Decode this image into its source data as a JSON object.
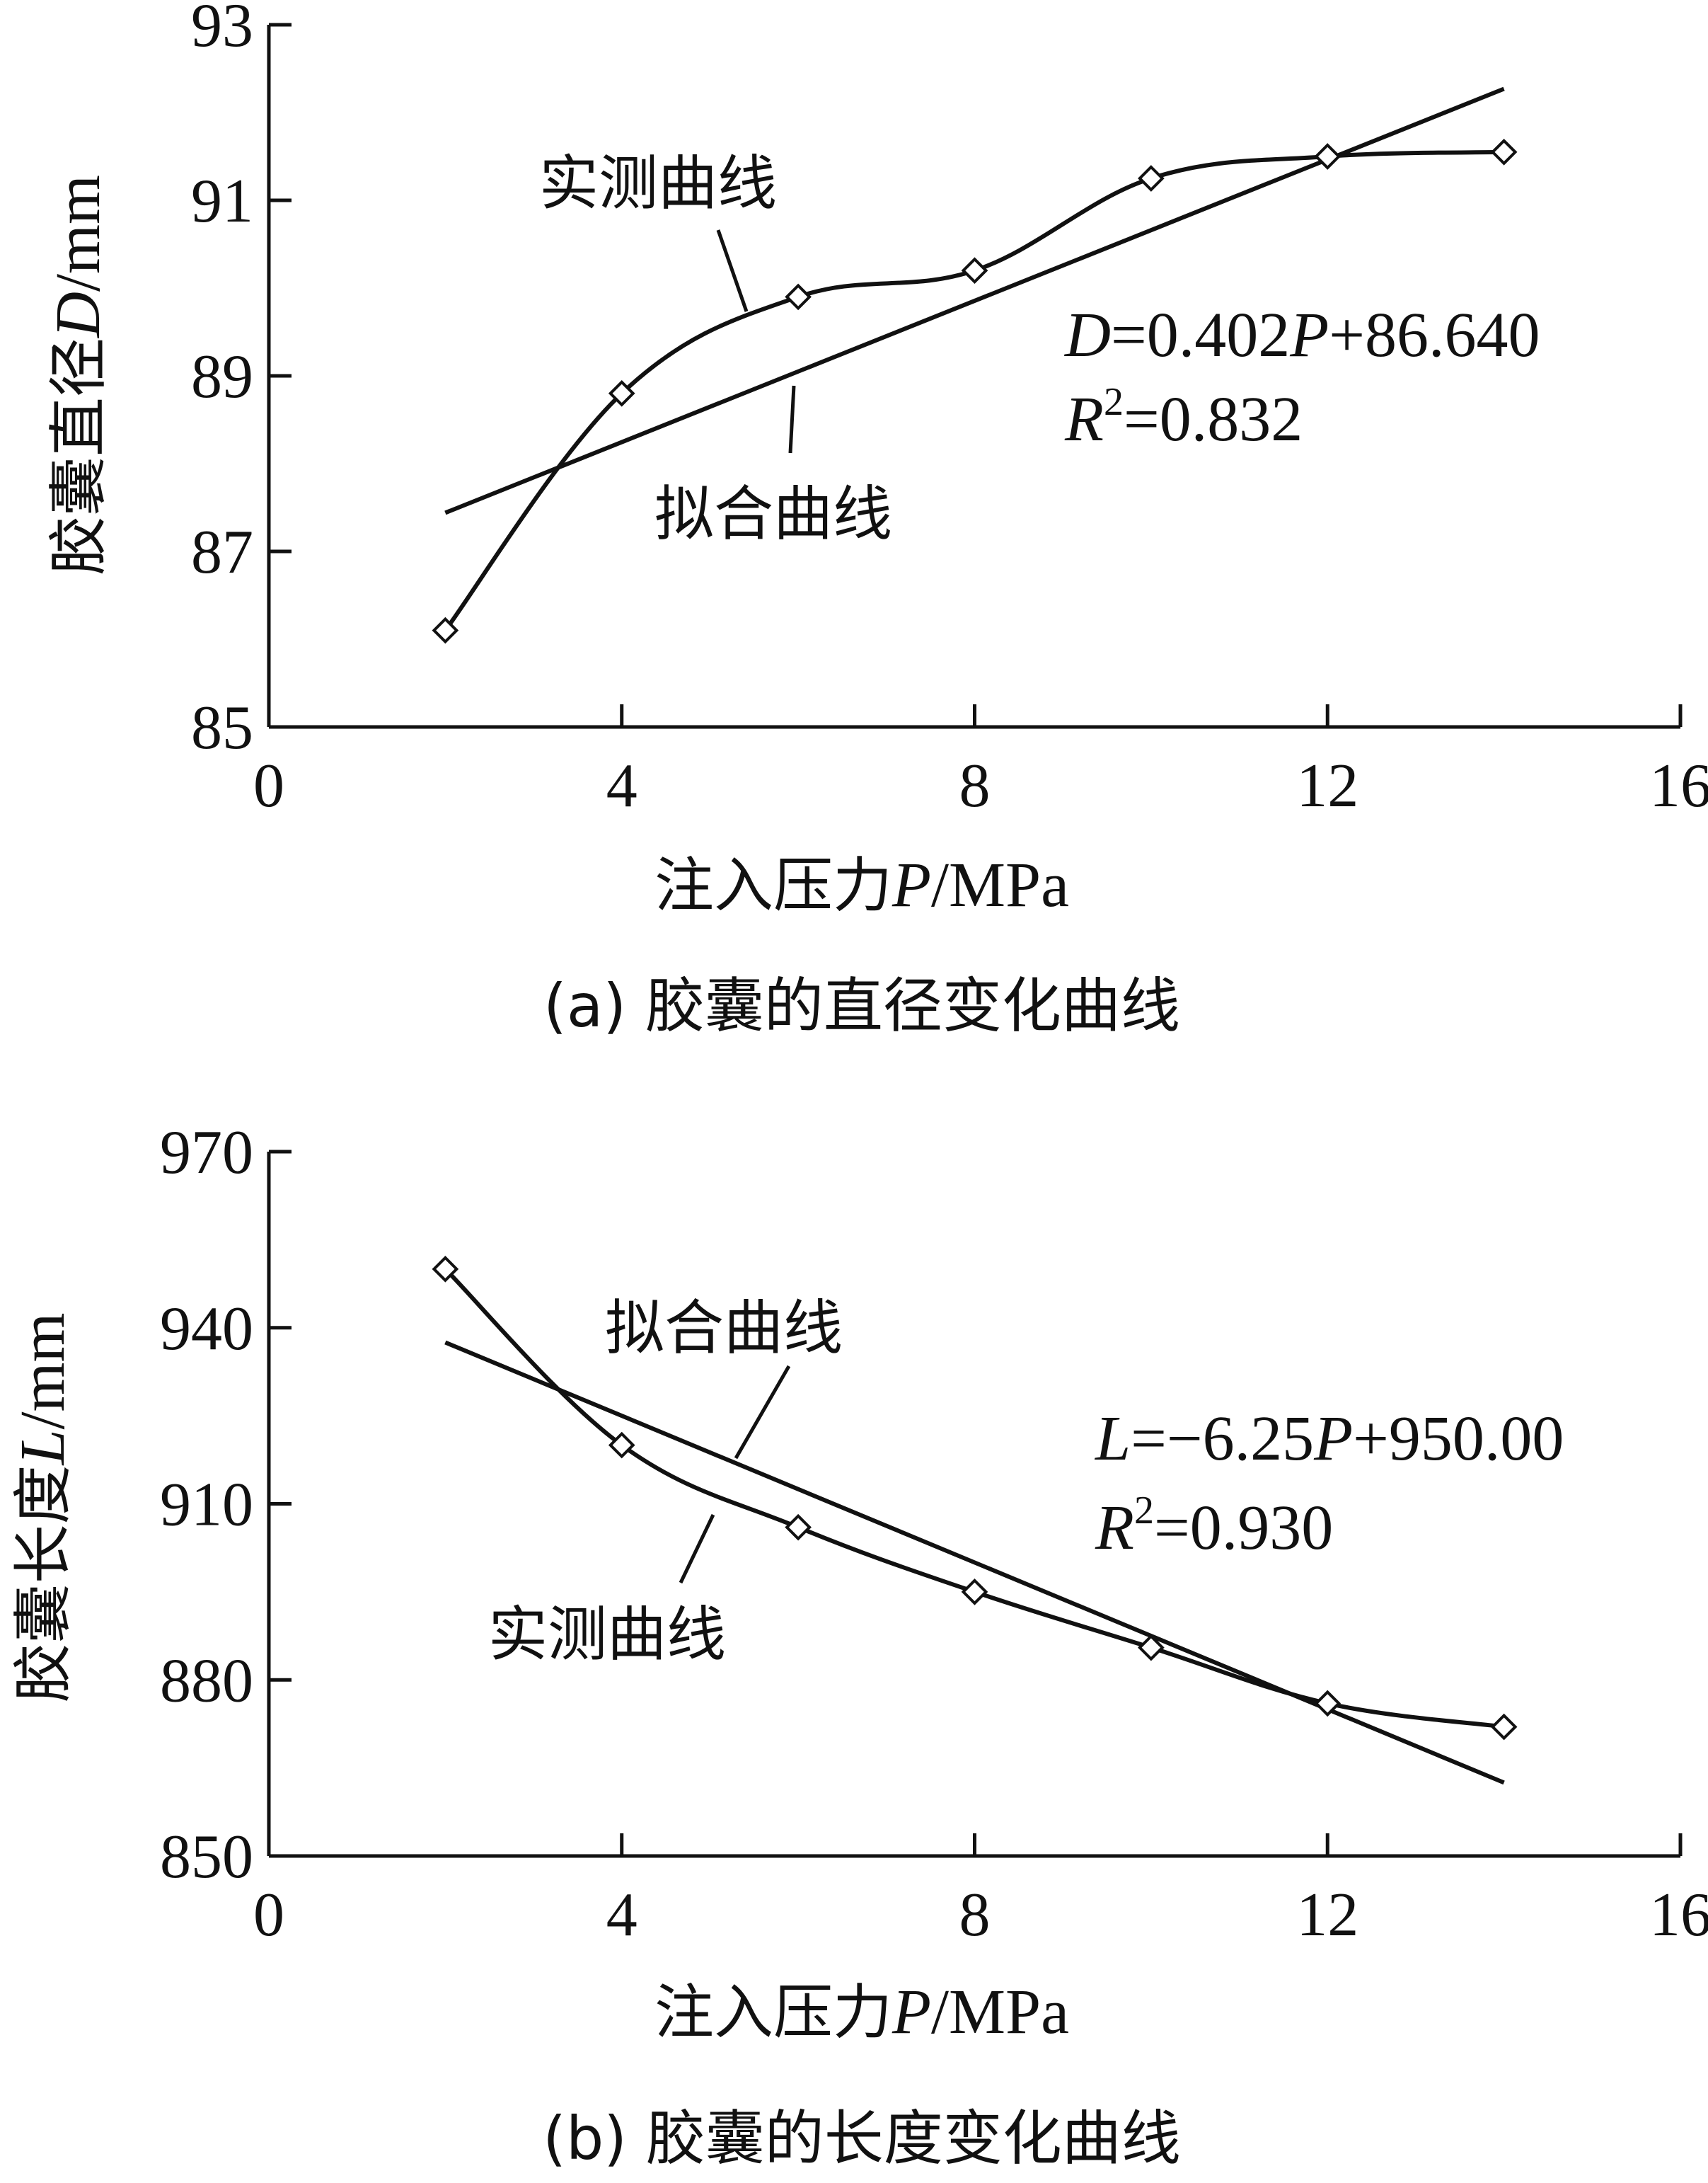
{
  "chart_data": [
    {
      "type": "line",
      "caption": "(a) 胶囊的直径变化曲线",
      "xlabel_text": "注入压力",
      "xlabel_var": "P",
      "xlabel_unit": "/MPa",
      "ylabel_text": "胶囊直径",
      "ylabel_var": "D",
      "ylabel_unit": "/mm",
      "xlim": [
        0,
        16
      ],
      "ylim": [
        85,
        93
      ],
      "xticks": [
        "0",
        "4",
        "8",
        "12",
        "16"
      ],
      "xtick_values": [
        0,
        4,
        8,
        12,
        16
      ],
      "yticks": [
        "85",
        "87",
        "89",
        "91",
        "93"
      ],
      "ytick_values": [
        85,
        87,
        89,
        91,
        93
      ],
      "grid": false,
      "series": [
        {
          "name": "实测曲线",
          "x": [
            2,
            4,
            6,
            8,
            10,
            12,
            14
          ],
          "y": [
            86.1,
            88.8,
            89.9,
            90.2,
            91.25,
            91.5,
            91.55
          ],
          "markers": "diamond"
        },
        {
          "name": "拟合曲线",
          "x": [
            2,
            14
          ],
          "y": [
            87.44,
            92.27
          ],
          "markers": "none"
        }
      ],
      "equation": {
        "var": "D",
        "rhs_1": "=0.402",
        "var2": "P",
        "rhs_2": "+86.640"
      },
      "r2": {
        "var": "R",
        "sup": "2",
        "value": "=0.832"
      }
    },
    {
      "type": "line",
      "caption": "(b) 胶囊的长度变化曲线",
      "xlabel_text": "注入压力",
      "xlabel_var": "P",
      "xlabel_unit": "/MPa",
      "ylabel_text": "胶囊长度",
      "ylabel_var": "L",
      "ylabel_unit": "/mm",
      "xlim": [
        0,
        16
      ],
      "ylim": [
        850,
        970
      ],
      "xticks": [
        "0",
        "4",
        "8",
        "12",
        "16"
      ],
      "xtick_values": [
        0,
        4,
        8,
        12,
        16
      ],
      "yticks": [
        "850",
        "880",
        "910",
        "940",
        "970"
      ],
      "ytick_values": [
        850,
        880,
        910,
        940,
        970
      ],
      "grid": false,
      "series": [
        {
          "name": "实测曲线",
          "x": [
            2,
            4,
            6,
            8,
            10,
            12,
            14
          ],
          "y": [
            950,
            920,
            906,
            895,
            885.5,
            876,
            872
          ],
          "markers": "diamond"
        },
        {
          "name": "拟合曲线",
          "x": [
            2,
            14
          ],
          "y": [
            937.5,
            862.5
          ],
          "markers": "none"
        }
      ],
      "equation": {
        "var": "L",
        "rhs_1": "=−6.25",
        "var2": "P",
        "rhs_2": "+950.00"
      },
      "r2": {
        "var": "R",
        "sup": "2",
        "value": "=0.930"
      }
    }
  ]
}
